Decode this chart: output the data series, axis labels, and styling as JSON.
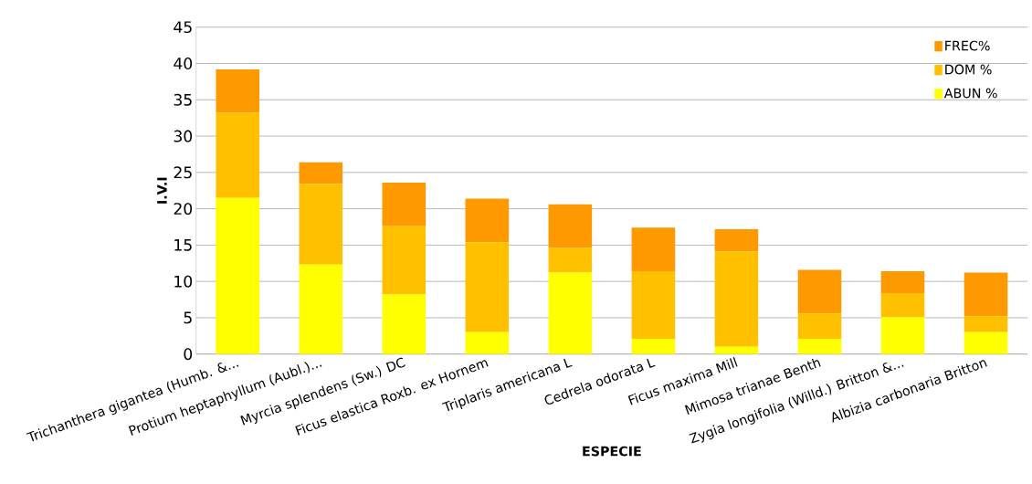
{
  "chart_data": {
    "type": "bar",
    "stacked": true,
    "xlabel": "ESPECIE",
    "ylabel": "I.V.I",
    "categories": [
      "Trichanthera gigantea (Humb. &...",
      "Protium heptaphyllum (Aubl.)...",
      "Myrcia splendens (Sw.) DC",
      "Ficus elastica Roxb. ex Hornem",
      "Triplaris americana L",
      "Cedrela odorata L",
      "Ficus maxima Mill",
      "Mimosa trianae Benth",
      "Zygia longifolia (Willd.) Britton &...",
      "Albizia carbonaria Britton"
    ],
    "series": [
      {
        "name": "ABUN %",
        "color": "#ffff00",
        "values": [
          21.5,
          12.3,
          8.2,
          3.0,
          11.2,
          2.1,
          1.0,
          2.1,
          5.1,
          3.0
        ]
      },
      {
        "name": "DOM %",
        "color": "#ffc000",
        "values": [
          11.7,
          11.1,
          9.4,
          12.4,
          3.4,
          9.3,
          13.1,
          3.5,
          3.3,
          2.2
        ]
      },
      {
        "name": "FREC%",
        "color": "#ff9900",
        "values": [
          6.0,
          3.0,
          6.0,
          6.0,
          6.0,
          6.0,
          3.1,
          6.0,
          3.0,
          6.0
        ]
      }
    ],
    "ylim": [
      0,
      45
    ],
    "yticks": [
      0,
      5,
      10,
      15,
      20,
      25,
      30,
      35,
      40,
      45
    ],
    "grid": "y",
    "legend": "top right"
  }
}
